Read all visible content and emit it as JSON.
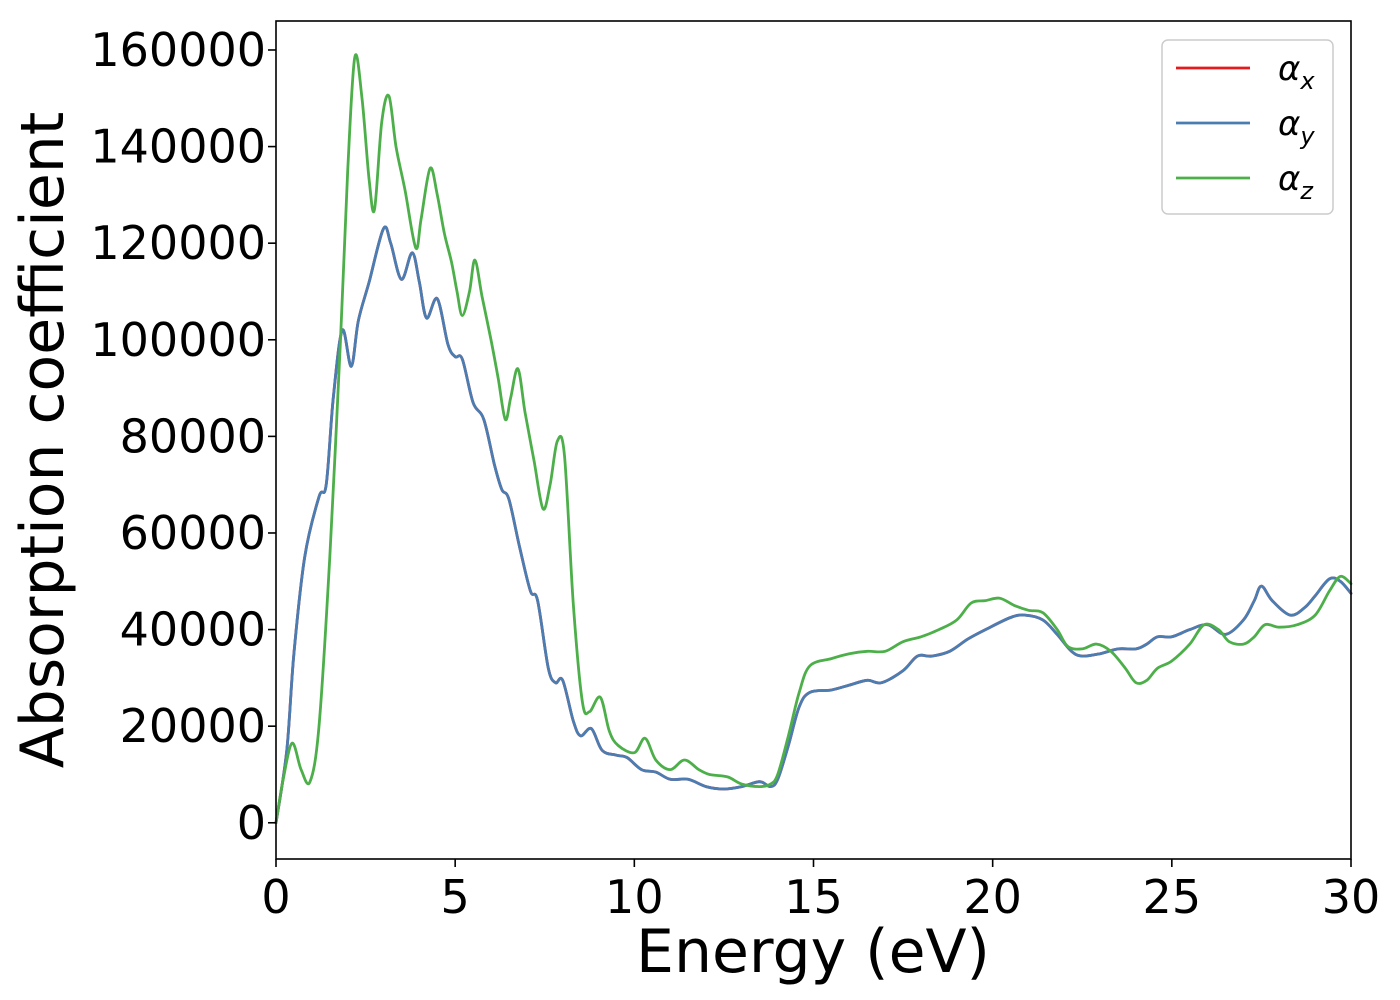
{
  "chart_data": {
    "type": "line",
    "xlabel": "Energy (eV)",
    "ylabel": "Absorption coefficient",
    "xlim": [
      0,
      30
    ],
    "ylim": [
      -7500,
      166000
    ],
    "xticks": [
      0,
      5,
      10,
      15,
      20,
      25,
      30
    ],
    "yticks": [
      0,
      20000,
      40000,
      60000,
      80000,
      100000,
      120000,
      140000,
      160000
    ],
    "grid": false,
    "legend_position": "top-right",
    "series": [
      {
        "name": "α",
        "subscript": "x",
        "color": "#e41a1c",
        "points": [
          [
            0,
            0
          ],
          [
            0.3,
            15000
          ],
          [
            0.5,
            35000
          ],
          [
            0.8,
            55000
          ],
          [
            1.2,
            67500
          ],
          [
            1.4,
            70000
          ],
          [
            1.6,
            88000
          ],
          [
            1.85,
            102000
          ],
          [
            2.1,
            94500
          ],
          [
            2.3,
            104000
          ],
          [
            2.6,
            112000
          ],
          [
            3.0,
            123000
          ],
          [
            3.2,
            120000
          ],
          [
            3.5,
            112500
          ],
          [
            3.8,
            118000
          ],
          [
            4.0,
            112000
          ],
          [
            4.2,
            104500
          ],
          [
            4.5,
            108500
          ],
          [
            4.8,
            99000
          ],
          [
            5.0,
            96500
          ],
          [
            5.2,
            96000
          ],
          [
            5.5,
            87000
          ],
          [
            5.8,
            83500
          ],
          [
            6.1,
            74000
          ],
          [
            6.3,
            69000
          ],
          [
            6.5,
            67000
          ],
          [
            6.8,
            57000
          ],
          [
            7.1,
            48000
          ],
          [
            7.3,
            46000
          ],
          [
            7.6,
            32000
          ],
          [
            7.8,
            29000
          ],
          [
            8.0,
            29500
          ],
          [
            8.3,
            21000
          ],
          [
            8.5,
            18000
          ],
          [
            8.8,
            19500
          ],
          [
            9.1,
            15000
          ],
          [
            9.5,
            14000
          ],
          [
            9.8,
            13500
          ],
          [
            10.2,
            11000
          ],
          [
            10.6,
            10500
          ],
          [
            11.0,
            9000
          ],
          [
            11.5,
            9000
          ],
          [
            12.0,
            7500
          ],
          [
            12.5,
            7000
          ],
          [
            13.0,
            7500
          ],
          [
            13.5,
            8500
          ],
          [
            13.8,
            7500
          ],
          [
            14.0,
            9000
          ],
          [
            14.3,
            16000
          ],
          [
            14.6,
            24000
          ],
          [
            14.9,
            27000
          ],
          [
            15.5,
            27500
          ],
          [
            16.0,
            28500
          ],
          [
            16.5,
            29500
          ],
          [
            16.9,
            29000
          ],
          [
            17.5,
            31500
          ],
          [
            17.9,
            34500
          ],
          [
            18.3,
            34500
          ],
          [
            18.8,
            35500
          ],
          [
            19.3,
            38000
          ],
          [
            19.8,
            40000
          ],
          [
            20.5,
            42500
          ],
          [
            20.9,
            43000
          ],
          [
            21.4,
            42000
          ],
          [
            21.8,
            39000
          ],
          [
            22.2,
            35500
          ],
          [
            22.5,
            34500
          ],
          [
            23.0,
            35000
          ],
          [
            23.5,
            36000
          ],
          [
            24.0,
            36000
          ],
          [
            24.3,
            37000
          ],
          [
            24.6,
            38500
          ],
          [
            25.0,
            38500
          ],
          [
            25.5,
            40000
          ],
          [
            26.0,
            41000
          ],
          [
            26.5,
            39000
          ],
          [
            27.0,
            42000
          ],
          [
            27.3,
            46000
          ],
          [
            27.5,
            49000
          ],
          [
            27.8,
            46000
          ],
          [
            28.3,
            43000
          ],
          [
            28.7,
            44500
          ],
          [
            29.0,
            47000
          ],
          [
            29.4,
            50500
          ],
          [
            29.7,
            50000
          ],
          [
            30.0,
            47500
          ]
        ]
      },
      {
        "name": "α",
        "subscript": "y",
        "color": "#4a7eb3",
        "points": [
          [
            0,
            0
          ],
          [
            0.3,
            15000
          ],
          [
            0.5,
            35000
          ],
          [
            0.8,
            55000
          ],
          [
            1.2,
            67500
          ],
          [
            1.4,
            70000
          ],
          [
            1.6,
            88000
          ],
          [
            1.85,
            102000
          ],
          [
            2.1,
            94500
          ],
          [
            2.3,
            104000
          ],
          [
            2.6,
            112000
          ],
          [
            3.0,
            123000
          ],
          [
            3.2,
            120000
          ],
          [
            3.5,
            112500
          ],
          [
            3.8,
            118000
          ],
          [
            4.0,
            112000
          ],
          [
            4.2,
            104500
          ],
          [
            4.5,
            108500
          ],
          [
            4.8,
            99000
          ],
          [
            5.0,
            96500
          ],
          [
            5.2,
            96000
          ],
          [
            5.5,
            87000
          ],
          [
            5.8,
            83500
          ],
          [
            6.1,
            74000
          ],
          [
            6.3,
            69000
          ],
          [
            6.5,
            67000
          ],
          [
            6.8,
            57000
          ],
          [
            7.1,
            48000
          ],
          [
            7.3,
            46000
          ],
          [
            7.6,
            32000
          ],
          [
            7.8,
            29000
          ],
          [
            8.0,
            29500
          ],
          [
            8.3,
            21000
          ],
          [
            8.5,
            18000
          ],
          [
            8.8,
            19500
          ],
          [
            9.1,
            15000
          ],
          [
            9.5,
            14000
          ],
          [
            9.8,
            13500
          ],
          [
            10.2,
            11000
          ],
          [
            10.6,
            10500
          ],
          [
            11.0,
            9000
          ],
          [
            11.5,
            9000
          ],
          [
            12.0,
            7500
          ],
          [
            12.5,
            7000
          ],
          [
            13.0,
            7500
          ],
          [
            13.5,
            8500
          ],
          [
            13.8,
            7500
          ],
          [
            14.0,
            9000
          ],
          [
            14.3,
            16000
          ],
          [
            14.6,
            24000
          ],
          [
            14.9,
            27000
          ],
          [
            15.5,
            27500
          ],
          [
            16.0,
            28500
          ],
          [
            16.5,
            29500
          ],
          [
            16.9,
            29000
          ],
          [
            17.5,
            31500
          ],
          [
            17.9,
            34500
          ],
          [
            18.3,
            34500
          ],
          [
            18.8,
            35500
          ],
          [
            19.3,
            38000
          ],
          [
            19.8,
            40000
          ],
          [
            20.5,
            42500
          ],
          [
            20.9,
            43000
          ],
          [
            21.4,
            42000
          ],
          [
            21.8,
            39000
          ],
          [
            22.2,
            35500
          ],
          [
            22.5,
            34500
          ],
          [
            23.0,
            35000
          ],
          [
            23.5,
            36000
          ],
          [
            24.0,
            36000
          ],
          [
            24.3,
            37000
          ],
          [
            24.6,
            38500
          ],
          [
            25.0,
            38500
          ],
          [
            25.5,
            40000
          ],
          [
            26.0,
            41000
          ],
          [
            26.5,
            39000
          ],
          [
            27.0,
            42000
          ],
          [
            27.3,
            46000
          ],
          [
            27.5,
            49000
          ],
          [
            27.8,
            46000
          ],
          [
            28.3,
            43000
          ],
          [
            28.7,
            44500
          ],
          [
            29.0,
            47000
          ],
          [
            29.4,
            50500
          ],
          [
            29.7,
            50000
          ],
          [
            30.0,
            47500
          ]
        ]
      },
      {
        "name": "α",
        "subscript": "z",
        "color": "#4daf4a",
        "points": [
          [
            0,
            0
          ],
          [
            0.2,
            9000
          ],
          [
            0.45,
            16500
          ],
          [
            0.7,
            11000
          ],
          [
            0.95,
            8500
          ],
          [
            1.2,
            20000
          ],
          [
            1.5,
            55000
          ],
          [
            1.8,
            100000
          ],
          [
            2.0,
            135000
          ],
          [
            2.2,
            158500
          ],
          [
            2.4,
            150000
          ],
          [
            2.6,
            133000
          ],
          [
            2.75,
            127000
          ],
          [
            2.95,
            145000
          ],
          [
            3.15,
            150500
          ],
          [
            3.35,
            140000
          ],
          [
            3.6,
            131000
          ],
          [
            3.9,
            119000
          ],
          [
            4.05,
            125000
          ],
          [
            4.3,
            135500
          ],
          [
            4.5,
            130000
          ],
          [
            4.7,
            122000
          ],
          [
            4.9,
            116000
          ],
          [
            5.05,
            110000
          ],
          [
            5.2,
            105000
          ],
          [
            5.4,
            110000
          ],
          [
            5.55,
            116500
          ],
          [
            5.75,
            109000
          ],
          [
            6.0,
            100000
          ],
          [
            6.2,
            92000
          ],
          [
            6.4,
            83500
          ],
          [
            6.55,
            88000
          ],
          [
            6.75,
            94000
          ],
          [
            6.95,
            85000
          ],
          [
            7.2,
            75000
          ],
          [
            7.45,
            65000
          ],
          [
            7.65,
            70000
          ],
          [
            7.85,
            79000
          ],
          [
            8.05,
            76000
          ],
          [
            8.3,
            45000
          ],
          [
            8.55,
            25000
          ],
          [
            8.75,
            23000
          ],
          [
            9.05,
            26000
          ],
          [
            9.3,
            19000
          ],
          [
            9.55,
            16000
          ],
          [
            10.0,
            14500
          ],
          [
            10.3,
            17500
          ],
          [
            10.6,
            13000
          ],
          [
            11.0,
            11000
          ],
          [
            11.4,
            13000
          ],
          [
            11.8,
            11000
          ],
          [
            12.1,
            10000
          ],
          [
            12.6,
            9500
          ],
          [
            13.0,
            8000
          ],
          [
            13.5,
            7500
          ],
          [
            13.8,
            8000
          ],
          [
            14.0,
            10000
          ],
          [
            14.3,
            18000
          ],
          [
            14.6,
            27000
          ],
          [
            14.9,
            32500
          ],
          [
            15.5,
            34000
          ],
          [
            16.0,
            35000
          ],
          [
            16.5,
            35500
          ],
          [
            17.0,
            35500
          ],
          [
            17.5,
            37500
          ],
          [
            18.0,
            38500
          ],
          [
            18.5,
            40000
          ],
          [
            19.0,
            42000
          ],
          [
            19.4,
            45500
          ],
          [
            19.8,
            46000
          ],
          [
            20.2,
            46500
          ],
          [
            20.6,
            45000
          ],
          [
            21.0,
            44000
          ],
          [
            21.4,
            43500
          ],
          [
            21.8,
            40000
          ],
          [
            22.1,
            36500
          ],
          [
            22.5,
            36000
          ],
          [
            22.9,
            37000
          ],
          [
            23.3,
            35500
          ],
          [
            23.7,
            32000
          ],
          [
            24.0,
            29000
          ],
          [
            24.3,
            29500
          ],
          [
            24.6,
            32000
          ],
          [
            25.0,
            33500
          ],
          [
            25.5,
            37000
          ],
          [
            25.9,
            41000
          ],
          [
            26.3,
            40000
          ],
          [
            26.6,
            37500
          ],
          [
            27.0,
            37000
          ],
          [
            27.3,
            38500
          ],
          [
            27.6,
            41000
          ],
          [
            28.0,
            40500
          ],
          [
            28.5,
            41000
          ],
          [
            29.0,
            43000
          ],
          [
            29.4,
            48000
          ],
          [
            29.7,
            51000
          ],
          [
            30.0,
            49500
          ]
        ]
      }
    ]
  }
}
